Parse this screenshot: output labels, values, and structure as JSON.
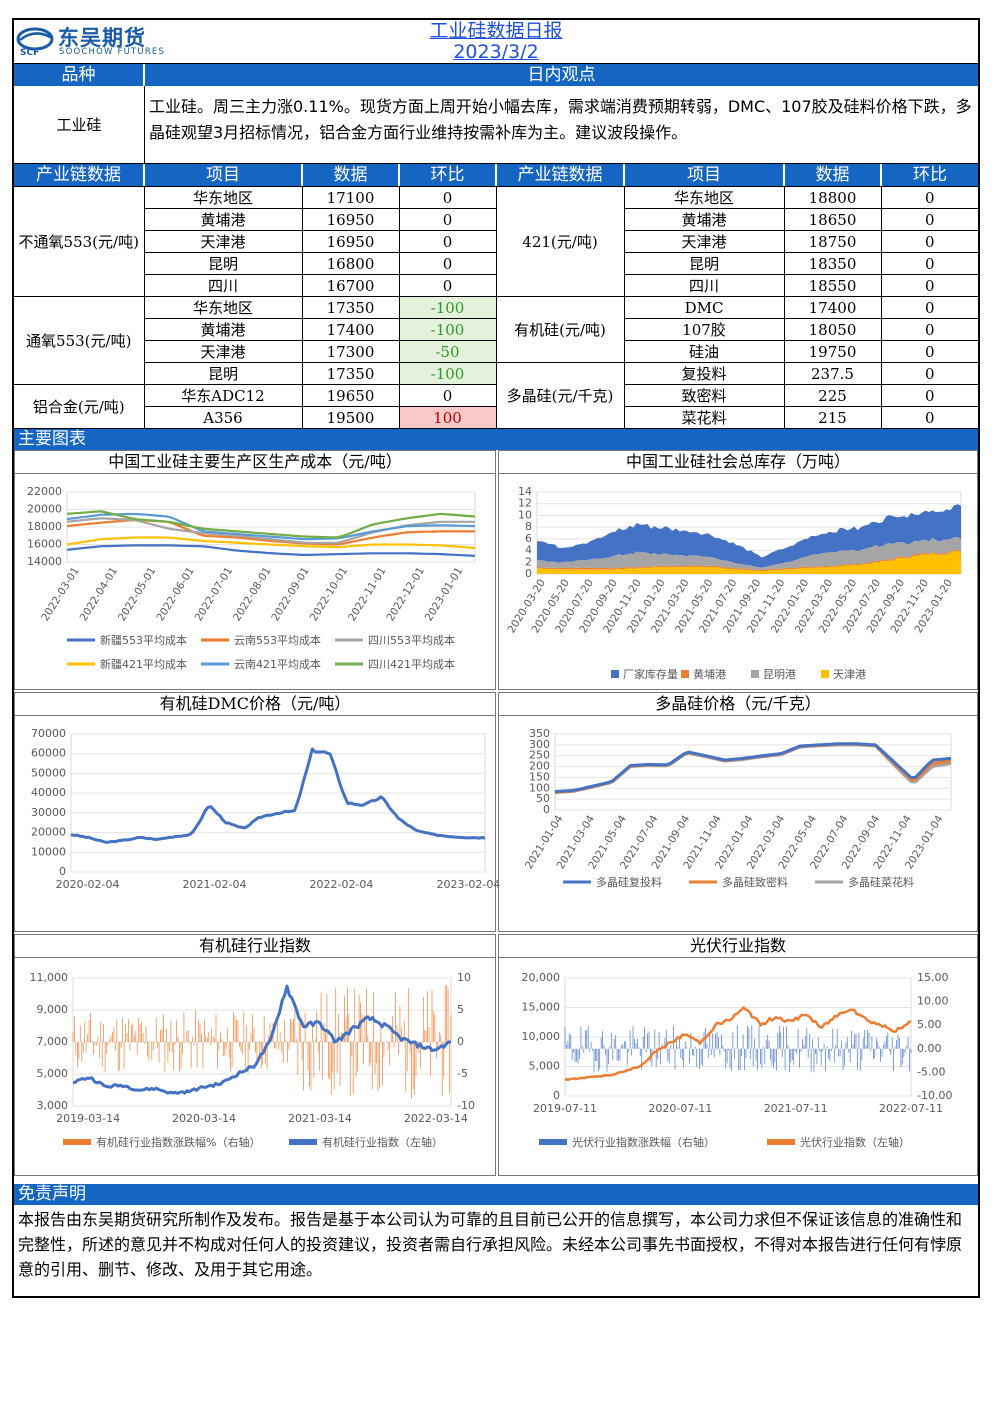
{
  "header": {
    "logo_cn": "东吴期货",
    "logo_en": "SOOCHOW FUTURES",
    "logo_mark": "SCF",
    "title": "工业硅数据日报",
    "date": "2023/3/2"
  },
  "view": {
    "col1": "品种",
    "col2": "日内观点",
    "variety": "工业硅",
    "text": "工业硅。周三主力涨0.11%。现货方面上周开始小幅去库，需求端消费预期转弱，DMC、107胶及硅料价格下跌，多晶硅观望3月招标情况，铝合金方面行业维持按需补库为主。建议波段操作。"
  },
  "table": {
    "headers": [
      "产业链数据",
      "项目",
      "数据",
      "环比",
      "产业链数据",
      "项目",
      "数据",
      "环比"
    ],
    "left_groups": [
      {
        "name": "不通氧553(元/吨)",
        "rows": [
          [
            "华东地区",
            "17100",
            "0"
          ],
          [
            "黄埔港",
            "16950",
            "0"
          ],
          [
            "天津港",
            "16950",
            "0"
          ],
          [
            "昆明",
            "16800",
            "0"
          ],
          [
            "四川",
            "16700",
            "0"
          ]
        ]
      },
      {
        "name": "通氧553(元/吨)",
        "rows": [
          [
            "华东地区",
            "17350",
            "-100"
          ],
          [
            "黄埔港",
            "17400",
            "-100"
          ],
          [
            "天津港",
            "17300",
            "-50"
          ],
          [
            "昆明",
            "17350",
            "-100"
          ]
        ]
      },
      {
        "name": "铝合金(元/吨)",
        "rows": [
          [
            "华东ADC12",
            "19650",
            "0"
          ],
          [
            "A356",
            "19500",
            "100"
          ]
        ]
      }
    ],
    "right_groups": [
      {
        "name": "421(元/吨)",
        "rows": [
          [
            "华东地区",
            "18800",
            "0"
          ],
          [
            "黄埔港",
            "18650",
            "0"
          ],
          [
            "天津港",
            "18750",
            "0"
          ],
          [
            "昆明",
            "18350",
            "0"
          ],
          [
            "四川",
            "18550",
            "0"
          ]
        ]
      },
      {
        "name": "有机硅(元/吨)",
        "rows": [
          [
            "DMC",
            "17400",
            "0"
          ],
          [
            "107胶",
            "18050",
            "0"
          ],
          [
            "硅油",
            "19750",
            "0"
          ]
        ]
      },
      {
        "name": "多晶硅(元/千克)",
        "rows": [
          [
            "复投料",
            "237.5",
            "0"
          ],
          [
            "致密料",
            "225",
            "0"
          ],
          [
            "菜花料",
            "215",
            "0"
          ]
        ]
      }
    ]
  },
  "charts_section": "主要图表",
  "chart_data": [
    {
      "type": "line",
      "title": "中国工业硅主要生产区生产成本（元/吨）",
      "ylim": [
        14000,
        22000
      ],
      "yticks": [
        "22000",
        "20000",
        "18000",
        "16000",
        "14000"
      ],
      "x_ticks": [
        "2022-03-01",
        "2022-04-01",
        "2022-05-01",
        "2022-06-01",
        "2022-07-01",
        "2022-08-01",
        "2022-09-01",
        "2022-10-01",
        "2022-11-01",
        "2022-12-01",
        "2023-01-01"
      ],
      "series": [
        {
          "name": "新疆553平均成本",
          "color": "#4472c4",
          "values": [
            15400,
            15800,
            15900,
            15900,
            15800,
            15300,
            15000,
            14800,
            14900,
            15000,
            15000,
            14900,
            14700
          ]
        },
        {
          "name": "云南553平均成本",
          "color": "#ed7d31",
          "values": [
            18100,
            18500,
            18800,
            18600,
            17000,
            16800,
            16400,
            16100,
            16000,
            16800,
            17400,
            17500,
            17500
          ]
        },
        {
          "name": "四川553平均成本",
          "color": "#a5a5a5",
          "values": [
            18600,
            19000,
            18800,
            17800,
            17300,
            17000,
            16600,
            16200,
            16200,
            17400,
            18200,
            18600,
            18600
          ]
        },
        {
          "name": "新疆421平均成本",
          "color": "#ffc000",
          "values": [
            16000,
            16600,
            16800,
            16800,
            16400,
            16200,
            16000,
            15800,
            15700,
            16000,
            16000,
            15900,
            15600
          ]
        },
        {
          "name": "云南421平均成本",
          "color": "#5b9bd5",
          "values": [
            18900,
            19400,
            19500,
            19200,
            17500,
            17200,
            16900,
            16600,
            16700,
            17500,
            18100,
            18200,
            18100
          ]
        },
        {
          "name": "四川421平均成本",
          "color": "#70ad47",
          "values": [
            19500,
            19800,
            18900,
            18600,
            17800,
            17500,
            17200,
            16900,
            16800,
            18300,
            19000,
            19500,
            19200
          ]
        }
      ]
    },
    {
      "type": "area",
      "title": "中国工业硅社会总库存（万吨）",
      "ylim": [
        0,
        14
      ],
      "yticks": [
        "14",
        "12",
        "10",
        "8",
        "6",
        "4",
        "2",
        "0"
      ],
      "x_ticks": [
        "2020-03-20",
        "2020-05-20",
        "2020-07-20",
        "2020-09-20",
        "2020-11-20",
        "2021-01-20",
        "2021-03-20",
        "2021-05-20",
        "2021-07-20",
        "2021-09-20",
        "2021-11-20",
        "2022-01-20",
        "2022-03-20",
        "2022-05-20",
        "2022-07-20",
        "2022-09-20",
        "2022-11-20",
        "2023-01-20"
      ],
      "series": [
        {
          "name": "厂家库存量",
          "color": "#4472c4",
          "values": [
            3.5,
            2.5,
            3.0,
            4.0,
            4.8,
            4.5,
            4.2,
            3.8,
            3.2,
            1.8,
            2.5,
            3.2,
            3.6,
            3.8,
            4.5,
            4.8,
            5.0,
            5.5
          ]
        },
        {
          "name": "黄埔港",
          "color": "#ed7d31",
          "values": [
            0.2,
            0.2,
            0.3,
            0.2,
            0.2,
            0.2,
            0.2,
            0.2,
            0.2,
            0.2,
            0.2,
            0.2,
            0.2,
            0.2,
            0.2,
            0.2,
            0.2,
            0.2
          ]
        },
        {
          "name": "昆明港",
          "color": "#a5a5a5",
          "values": [
            1.2,
            1.0,
            1.3,
            2.0,
            2.5,
            2.0,
            1.8,
            1.5,
            0.8,
            0.4,
            1.0,
            2.0,
            2.5,
            2.4,
            2.6,
            2.3,
            2.2,
            2.3
          ]
        },
        {
          "name": "天津港",
          "color": "#ffc000",
          "values": [
            1.0,
            0.8,
            0.8,
            0.8,
            1.0,
            1.2,
            1.2,
            1.2,
            0.8,
            0.5,
            0.8,
            1.0,
            1.3,
            1.6,
            2.2,
            3.0,
            3.5,
            3.8
          ]
        }
      ]
    },
    {
      "type": "line",
      "title": "有机硅DMC价格（元/吨）",
      "ylim": [
        0,
        70000
      ],
      "yticks": [
        "70000",
        "60000",
        "50000",
        "40000",
        "30000",
        "20000",
        "10000",
        "0"
      ],
      "x_ticks": [
        "2020-02-04",
        "2021-02-04",
        "2022-02-04",
        "2023-02-04"
      ],
      "series": [
        {
          "name": "DMC",
          "color": "#4472c4",
          "values": [
            19000,
            17500,
            15000,
            16000,
            17500,
            16500,
            18000,
            19000,
            34000,
            25000,
            22000,
            28000,
            30000,
            31000,
            62000,
            60000,
            35000,
            34000,
            38000,
            27000,
            21000,
            19000,
            18000,
            17500,
            17400
          ]
        }
      ]
    },
    {
      "type": "line",
      "title": "多晶硅价格（元/千克）",
      "ylim": [
        0,
        350
      ],
      "yticks": [
        "350",
        "300",
        "250",
        "200",
        "150",
        "100",
        "50",
        "0"
      ],
      "x_ticks": [
        "2021-01-04",
        "2021-03-04",
        "2021-05-04",
        "2021-07-04",
        "2021-09-04",
        "2021-11-04",
        "2022-01-04",
        "2022-03-04",
        "2022-05-04",
        "2022-07-04",
        "2022-09-04",
        "2022-11-04",
        "2023-01-04"
      ],
      "series": [
        {
          "name": "多晶硅复投料",
          "color": "#4472c4",
          "values": [
            85,
            90,
            110,
            130,
            205,
            210,
            208,
            268,
            250,
            230,
            238,
            250,
            260,
            295,
            300,
            305,
            305,
            300,
            220,
            140,
            230,
            237.5
          ]
        },
        {
          "name": "多晶硅致密料",
          "color": "#ed7d31",
          "values": [
            82,
            88,
            108,
            128,
            203,
            208,
            206,
            266,
            248,
            228,
            236,
            248,
            258,
            293,
            298,
            303,
            303,
            298,
            215,
            130,
            215,
            225
          ]
        },
        {
          "name": "多晶硅菜花料",
          "color": "#a5a5a5",
          "values": [
            80,
            86,
            106,
            126,
            200,
            205,
            203,
            263,
            245,
            225,
            233,
            245,
            255,
            290,
            296,
            300,
            300,
            295,
            205,
            120,
            200,
            215
          ]
        }
      ]
    },
    {
      "type": "line",
      "title": "有机硅行业指数",
      "ylim": [
        3000,
        11000
      ],
      "ylim_right": [
        -10,
        10
      ],
      "yticks": [
        "11,000",
        "9,000",
        "7,000",
        "5,000",
        "3,000"
      ],
      "yticks_right": [
        "10",
        "5",
        "0",
        "-5",
        "-10"
      ],
      "x_ticks": [
        "2019-03-14",
        "2020-03-14",
        "2021-03-14",
        "2022-03-14"
      ],
      "series": [
        {
          "name": "有机硅行业指数涨跌幅%（右轴）",
          "color": "#ed7d31",
          "values": []
        },
        {
          "name": "有机硅行业指数（左轴）",
          "color": "#4472c4",
          "values": [
            4500,
            4800,
            4200,
            4300,
            4000,
            4100,
            3800,
            3900,
            4200,
            4400,
            5000,
            5500,
            7000,
            10500,
            8000,
            8200,
            7000,
            7800,
            8500,
            8000,
            7200,
            6800,
            6500,
            7000
          ]
        }
      ]
    },
    {
      "type": "line",
      "title": "光伏行业指数",
      "ylim": [
        0,
        20000
      ],
      "ylim_right": [
        -10,
        15
      ],
      "yticks": [
        "20,000",
        "15,000",
        "10,000",
        "5,000",
        "0"
      ],
      "yticks_right": [
        "15.00",
        "10.00",
        "5.00",
        "0.00",
        "-5.00",
        "-10.00"
      ],
      "x_ticks": [
        "2019-07-11",
        "2020-07-11",
        "2021-07-11",
        "2022-07-11"
      ],
      "series": [
        {
          "name": "光伏行业指数涨跌幅（右轴）",
          "color": "#4472c4",
          "values": []
        },
        {
          "name": "光伏行业指数（左轴）",
          "color": "#ed7d31",
          "values": [
            2800,
            3000,
            3300,
            3500,
            4200,
            5000,
            7500,
            9000,
            10500,
            9000,
            12000,
            13000,
            15000,
            12000,
            13500,
            12500,
            14000,
            11500,
            13500,
            15000,
            13000,
            12000,
            11000,
            12500
          ]
        }
      ]
    }
  ],
  "disclaimer": {
    "title": "免责声明",
    "text": "本报告由东吴期货研究所制作及发布。报告是基于本公司认为可靠的且目前已公开的信息撰写，本公司力求但不保证该信息的准确性和完整性，所述的意见并不构成对任何人的投资建议，投资者需自行承担风险。未经本公司事先书面授权，不得对本报告进行任何有悖原意的引用、删节、修改、及用于其它用途。"
  }
}
